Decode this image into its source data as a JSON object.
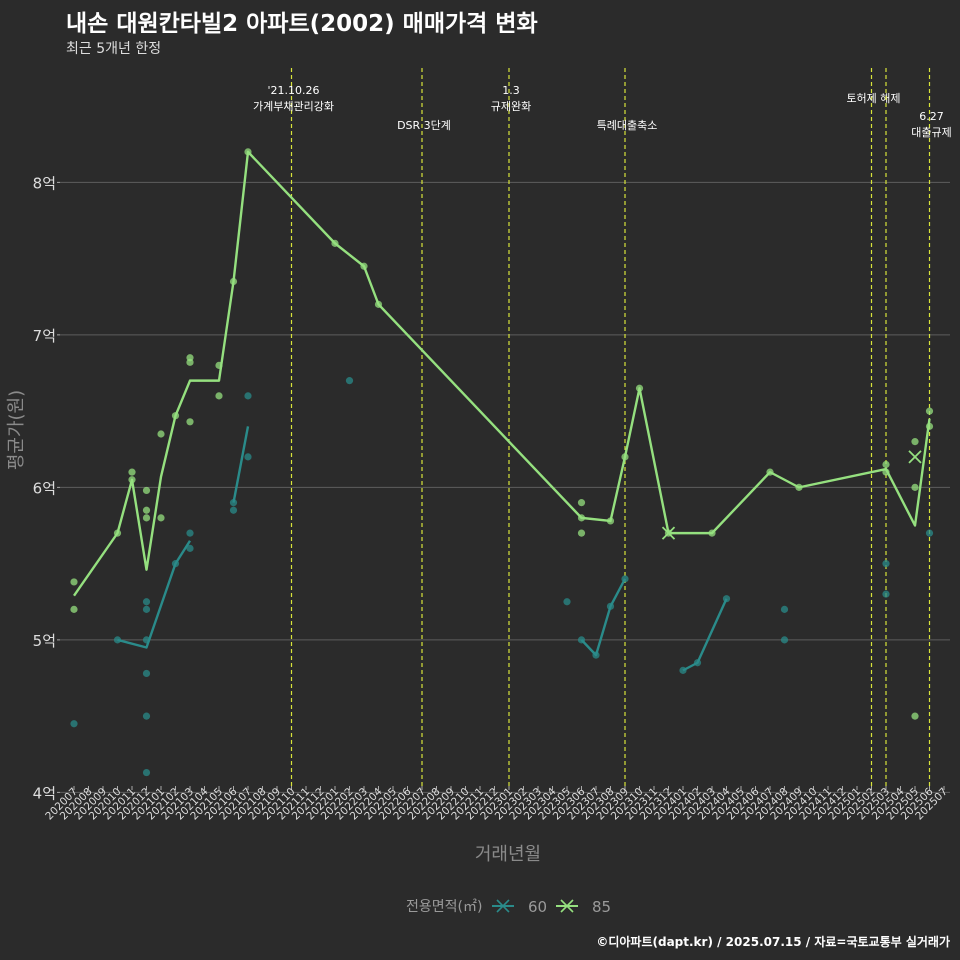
{
  "header": {
    "title": "내손 대원칸타빌2 아파트(2002) 매매가격 변화",
    "subtitle": "최근 5개년 한정"
  },
  "caption": "©디아파트(dapt.kr) / 2025.07.15 / 자료=국토교통부 실거래가",
  "colors": {
    "background": "#2b2b2b",
    "grid": "#5e5e5e",
    "series_60": "#2a8b8a",
    "series_85": "#95e07f",
    "event_line": "#d8e33a"
  },
  "chart_data": {
    "type": "line",
    "xlabel": "거래년월",
    "ylabel": "평균가(원)",
    "y_unit": "억",
    "ylim": [
      3.95,
      8.75
    ],
    "y_ticks": [
      4,
      5,
      6,
      7,
      8
    ],
    "y_tick_labels": [
      "4억",
      "5억",
      "6억",
      "7억",
      "8억"
    ],
    "x_categories": [
      "202007",
      "202008",
      "202009",
      "202010",
      "202011",
      "202012",
      "202101",
      "202102",
      "202103",
      "202104",
      "202105",
      "202106",
      "202107",
      "202108",
      "202109",
      "202110",
      "202111",
      "202112",
      "202201",
      "202202",
      "202203",
      "202204",
      "202205",
      "202206",
      "202207",
      "202208",
      "202209",
      "202210",
      "202211",
      "202212",
      "202301",
      "202302",
      "202303",
      "202304",
      "202305",
      "202306",
      "202307",
      "202308",
      "202309",
      "202310",
      "202311",
      "202312",
      "202401",
      "202402",
      "202403",
      "202404",
      "202405",
      "202406",
      "202407",
      "202408",
      "202409",
      "202410",
      "202411",
      "202412",
      "202501",
      "202502",
      "202503",
      "202504",
      "202505",
      "202506",
      "202507"
    ],
    "legend": {
      "title": "전용면적(㎡)",
      "position": "bottom"
    },
    "grid": true,
    "series": [
      {
        "name": "60",
        "line": [
          [
            "202010",
            5.0
          ],
          [
            "202012",
            4.95
          ],
          [
            "202102",
            5.5
          ],
          [
            "202103",
            5.65
          ],
          null,
          [
            "202106",
            5.9
          ],
          [
            "202107",
            6.4
          ],
          null,
          [
            "202306",
            5.0
          ],
          [
            "202307",
            4.9
          ],
          [
            "202308",
            5.22
          ],
          [
            "202309",
            5.4
          ],
          null,
          [
            "202401",
            4.8
          ],
          [
            "202402",
            4.85
          ],
          [
            "202404",
            5.27
          ]
        ],
        "points": [
          [
            "202007",
            4.45
          ],
          [
            "202010",
            5.0
          ],
          [
            "202012",
            5.25
          ],
          [
            "202012",
            5.2
          ],
          [
            "202012",
            5.0
          ],
          [
            "202012",
            4.78
          ],
          [
            "202012",
            4.5
          ],
          [
            "202012",
            4.13
          ],
          [
            "202102",
            5.5
          ],
          [
            "202103",
            5.7
          ],
          [
            "202103",
            5.6
          ],
          [
            "202106",
            5.9
          ],
          [
            "202106",
            5.85
          ],
          [
            "202107",
            6.6
          ],
          [
            "202107",
            6.2
          ],
          [
            "202202",
            6.7
          ],
          [
            "202305",
            5.25
          ],
          [
            "202306",
            5.0
          ],
          [
            "202307",
            4.9
          ],
          [
            "202308",
            5.22
          ],
          [
            "202309",
            5.4
          ],
          [
            "202401",
            4.8
          ],
          [
            "202402",
            4.85
          ],
          [
            "202404",
            5.27
          ],
          [
            "202408",
            5.2
          ],
          [
            "202408",
            5.0
          ],
          [
            "202503",
            5.5
          ],
          [
            "202503",
            5.3
          ],
          [
            "202506",
            5.7
          ]
        ],
        "cross_points": []
      },
      {
        "name": "85",
        "line": [
          [
            "202007",
            5.29
          ],
          [
            "202010",
            5.7
          ],
          [
            "202011",
            6.05
          ],
          [
            "202012",
            5.46
          ],
          [
            "202101",
            6.07
          ],
          [
            "202102",
            6.47
          ],
          [
            "202103",
            6.7
          ],
          [
            "202105",
            6.7
          ],
          [
            "202106",
            7.35
          ],
          [
            "202107",
            8.2
          ],
          [
            "202201",
            7.6
          ],
          [
            "202203",
            7.45
          ],
          [
            "202204",
            7.2
          ],
          [
            "202306",
            5.8
          ],
          [
            "202308",
            5.78
          ],
          [
            "202309",
            6.2
          ],
          [
            "202310",
            6.65
          ],
          [
            "202312",
            5.7
          ],
          [
            "202403",
            5.7
          ],
          [
            "202407",
            6.1
          ],
          [
            "202409",
            6.0
          ],
          [
            "202503",
            6.12
          ],
          [
            "202505",
            5.75
          ],
          [
            "202506",
            6.45
          ]
        ],
        "points": [
          [
            "202007",
            5.38
          ],
          [
            "202007",
            5.2
          ],
          [
            "202010",
            5.7
          ],
          [
            "202011",
            6.1
          ],
          [
            "202011",
            6.05
          ],
          [
            "202012",
            5.98
          ],
          [
            "202012",
            5.85
          ],
          [
            "202012",
            5.8
          ],
          [
            "202101",
            6.35
          ],
          [
            "202101",
            5.8
          ],
          [
            "202102",
            6.47
          ],
          [
            "202103",
            6.85
          ],
          [
            "202103",
            6.82
          ],
          [
            "202103",
            6.43
          ],
          [
            "202105",
            6.8
          ],
          [
            "202105",
            6.6
          ],
          [
            "202106",
            7.35
          ],
          [
            "202107",
            8.2
          ],
          [
            "202201",
            7.6
          ],
          [
            "202203",
            7.45
          ],
          [
            "202204",
            7.2
          ],
          [
            "202306",
            5.9
          ],
          [
            "202306",
            5.8
          ],
          [
            "202306",
            5.7
          ],
          [
            "202308",
            5.78
          ],
          [
            "202309",
            6.2
          ],
          [
            "202310",
            6.65
          ],
          [
            "202312",
            5.7
          ],
          [
            "202403",
            5.7
          ],
          [
            "202407",
            6.1
          ],
          [
            "202409",
            6.0
          ],
          [
            "202503",
            6.15
          ],
          [
            "202503",
            6.1
          ],
          [
            "202505",
            6.3
          ],
          [
            "202505",
            6.0
          ],
          [
            "202505",
            4.5
          ],
          [
            "202506",
            6.5
          ],
          [
            "202506",
            6.4
          ]
        ],
        "cross_points": [
          [
            "202312",
            5.7
          ],
          [
            "202505",
            6.2
          ]
        ]
      }
    ],
    "events": [
      {
        "x": "202110",
        "lines": [
          "'21.10.26",
          "가계부채관리강화"
        ],
        "row": 0
      },
      {
        "x": "202207",
        "lines": [
          "DSR 3단계"
        ],
        "row": 2
      },
      {
        "x": "202301",
        "lines": [
          "1.3",
          "규제완화"
        ],
        "row": 0
      },
      {
        "x": "202309",
        "lines": [
          "특례대출축소"
        ],
        "row": 2
      },
      {
        "x": "202502",
        "lines": [
          "토허제 해제"
        ],
        "row": 1
      },
      {
        "x": "202503",
        "lines": [],
        "row": 1
      },
      {
        "x": "202506",
        "lines": [
          "6.27",
          "대출규제"
        ],
        "row": 3
      }
    ]
  }
}
